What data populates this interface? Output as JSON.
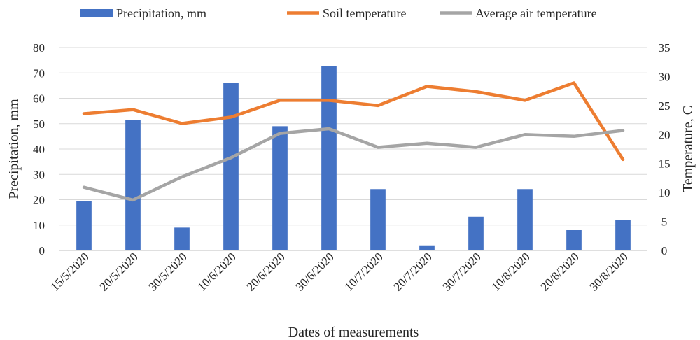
{
  "chart_data": {
    "type": "bar",
    "categories": [
      "15/5/2020",
      "20/5/2020",
      "30/5/2020",
      "10/6/2020",
      "20/6/2020",
      "30/6/2020",
      "10/7/2020",
      "20/7/2020",
      "30/7/2020",
      "10/8/2020",
      "20/8/2020",
      "30/8/2020"
    ],
    "series": [
      {
        "name": "Precipitation, mm",
        "kind": "bar",
        "axis": "left",
        "color": "#4472c4",
        "values": [
          19.5,
          51.5,
          9,
          66,
          49,
          72.7,
          24.2,
          2,
          13.3,
          24.2,
          8,
          12
        ]
      },
      {
        "name": "Soil temperature",
        "kind": "line",
        "axis": "right",
        "color": "#ed7d31",
        "values": [
          23.6,
          24.3,
          21.9,
          23,
          25.9,
          25.9,
          25,
          28.3,
          27.4,
          25.9,
          28.9,
          15.7
        ]
      },
      {
        "name": "Average air temperature",
        "kind": "line",
        "axis": "right",
        "color": "#a5a5a5",
        "values": [
          10.9,
          8.7,
          12.7,
          16,
          20.2,
          21,
          17.8,
          18.5,
          17.8,
          20,
          19.7,
          20.7
        ]
      }
    ],
    "xlabel": "Dates of measurements",
    "ylabel": "Precipitation, mm",
    "y2label": "Temperature, C",
    "ylim": [
      0,
      80
    ],
    "ytick_step": 10,
    "y2lim": [
      0,
      35
    ],
    "y2tick_step": 5,
    "legend": "top",
    "grid": true
  }
}
